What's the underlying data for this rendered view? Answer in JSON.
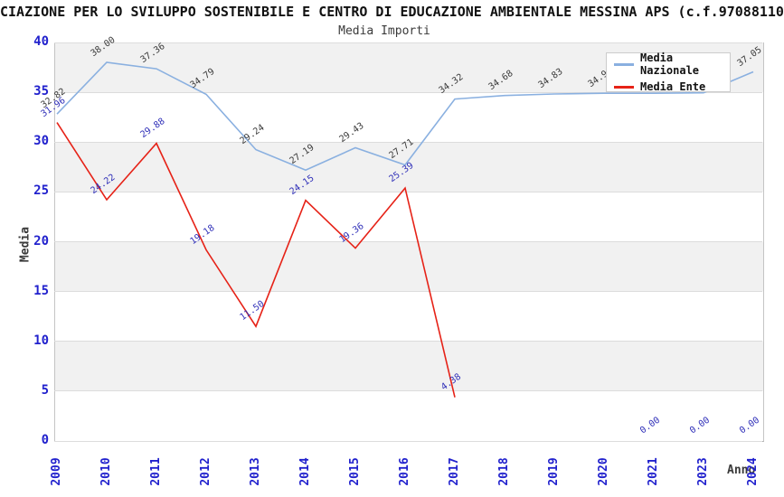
{
  "header": {
    "title": "CIAZIONE PER LO SVILUPPO SOSTENIBILE E CENTRO DI EDUCAZIONE AMBIENTALE MESSINA APS (c.f.97088110",
    "subtitle": "Media Importi"
  },
  "legend": {
    "items": [
      {
        "label": "Media Nazionale",
        "color": "#8ab0e0"
      },
      {
        "label": "Media Ente",
        "color": "#e62217"
      }
    ]
  },
  "axes": {
    "y_title": "Media",
    "x_title": "Anno",
    "y_ticks": [
      40,
      35,
      30,
      25,
      20,
      15,
      10,
      5,
      0
    ],
    "tick_color": "#2121cd"
  },
  "chart_data": {
    "type": "line",
    "title": "Media Importi",
    "xlabel": "Anno",
    "ylabel": "Media",
    "ylim": [
      0,
      40
    ],
    "ytick_step": 5,
    "grid": true,
    "legend_position": "top-right",
    "categories": [
      "2009",
      "2010",
      "2011",
      "2012",
      "2013",
      "2014",
      "2015",
      "2016",
      "2017",
      "2018",
      "2019",
      "2020",
      "2021",
      "2023",
      "2024"
    ],
    "series": [
      {
        "name": "Media Nazionale",
        "color": "#8ab0e0",
        "label_color": "#3a3a3a",
        "values": [
          32.82,
          38.0,
          37.36,
          34.79,
          29.24,
          27.19,
          29.43,
          27.71,
          34.32,
          34.68,
          34.83,
          34.9,
          34.9,
          34.95,
          37.05
        ],
        "line_segments": [
          [
            0,
            14
          ]
        ]
      },
      {
        "name": "Media Ente",
        "color": "#e62217",
        "label_color": "#2e2eb8",
        "values": [
          31.96,
          24.22,
          29.88,
          19.18,
          11.5,
          24.15,
          19.36,
          25.39,
          4.38,
          null,
          null,
          null,
          0.0,
          0.0,
          0.0
        ],
        "line_segments": [
          [
            0,
            8
          ]
        ]
      }
    ]
  }
}
